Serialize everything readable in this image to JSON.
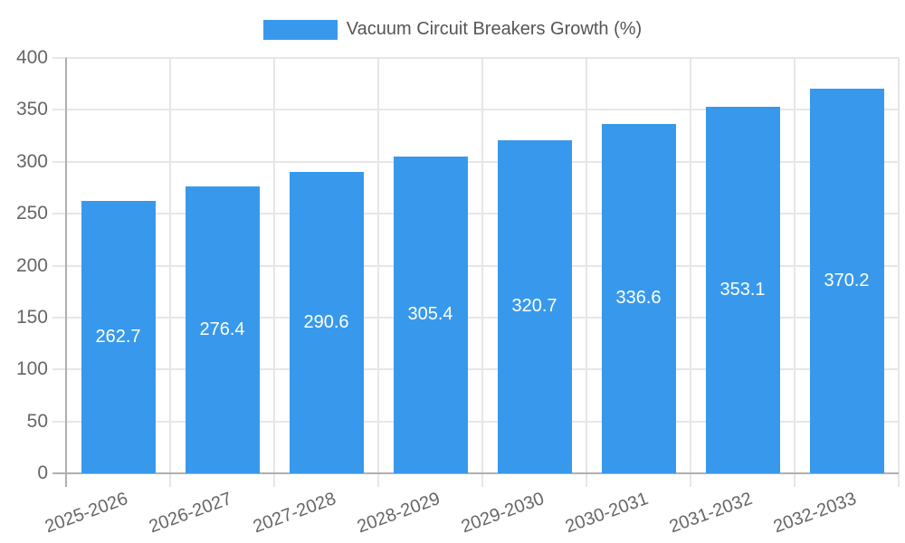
{
  "chart_data": {
    "type": "bar",
    "title": "",
    "legend": {
      "label": "Vacuum Circuit Breakers Growth (%)",
      "position": "top-center"
    },
    "categories": [
      "2025-2026",
      "2026-2027",
      "2027-2028",
      "2028-2029",
      "2029-2030",
      "2030-2031",
      "2031-2032",
      "2032-2033"
    ],
    "series": [
      {
        "name": "Vacuum Circuit Breakers Growth (%)",
        "color": "#3899EC",
        "values": [
          262.7,
          276.4,
          290.6,
          305.4,
          320.7,
          336.6,
          353.1,
          370.2
        ]
      }
    ],
    "xlabel": "",
    "ylabel": "",
    "ylim": [
      0,
      400
    ],
    "ytick_step": 50,
    "yticks": [
      0,
      50,
      100,
      150,
      200,
      250,
      300,
      350,
      400
    ],
    "grid": "horizontal lines every 50 plus vertical category-boundary lines",
    "bar_labels": "value inside bar, centered, white",
    "x_label_rotation_deg": -20
  },
  "colors": {
    "bar": "#3899EC",
    "grid": "#E6E6E6",
    "axis": "#B0B0B0",
    "tick_text": "#666666",
    "legend_text": "#555555",
    "bar_label_text": "#FFFFFF",
    "background": "#FFFFFF"
  }
}
